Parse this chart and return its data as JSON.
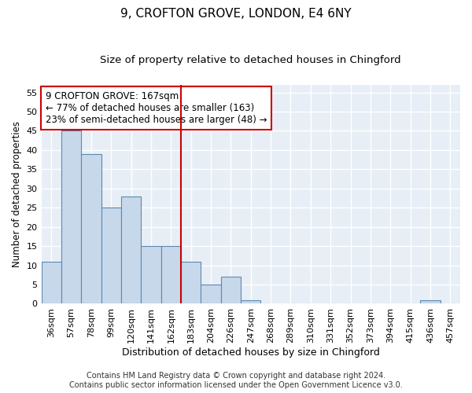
{
  "title1": "9, CROFTON GROVE, LONDON, E4 6NY",
  "title2": "Size of property relative to detached houses in Chingford",
  "xlabel": "Distribution of detached houses by size in Chingford",
  "ylabel": "Number of detached properties",
  "bin_labels": [
    "36sqm",
    "57sqm",
    "78sqm",
    "99sqm",
    "120sqm",
    "141sqm",
    "162sqm",
    "183sqm",
    "204sqm",
    "226sqm",
    "247sqm",
    "268sqm",
    "289sqm",
    "310sqm",
    "331sqm",
    "352sqm",
    "373sqm",
    "394sqm",
    "415sqm",
    "436sqm",
    "457sqm"
  ],
  "bar_values": [
    11,
    45,
    39,
    25,
    28,
    15,
    15,
    11,
    5,
    7,
    1,
    0,
    0,
    0,
    0,
    0,
    0,
    0,
    0,
    1,
    0
  ],
  "bar_color": "#c8d8eb",
  "bar_edge_color": "#5a8ab0",
  "ylim": [
    0,
    57
  ],
  "yticks": [
    0,
    5,
    10,
    15,
    20,
    25,
    30,
    35,
    40,
    45,
    50,
    55
  ],
  "vline_color": "#cc0000",
  "annotation_text": "9 CROFTON GROVE: 167sqm\n← 77% of detached houses are smaller (163)\n23% of semi-detached houses are larger (48) →",
  "annotation_box_facecolor": "#ffffff",
  "annotation_box_edgecolor": "#cc0000",
  "footer_line1": "Contains HM Land Registry data © Crown copyright and database right 2024.",
  "footer_line2": "Contains public sector information licensed under the Open Government Licence v3.0.",
  "fig_facecolor": "#ffffff",
  "ax_facecolor": "#e8eef5",
  "grid_color": "#ffffff",
  "title1_fontsize": 11,
  "title2_fontsize": 9.5,
  "xlabel_fontsize": 9,
  "ylabel_fontsize": 8.5,
  "tick_fontsize": 8,
  "annotation_fontsize": 8.5,
  "footer_fontsize": 7
}
